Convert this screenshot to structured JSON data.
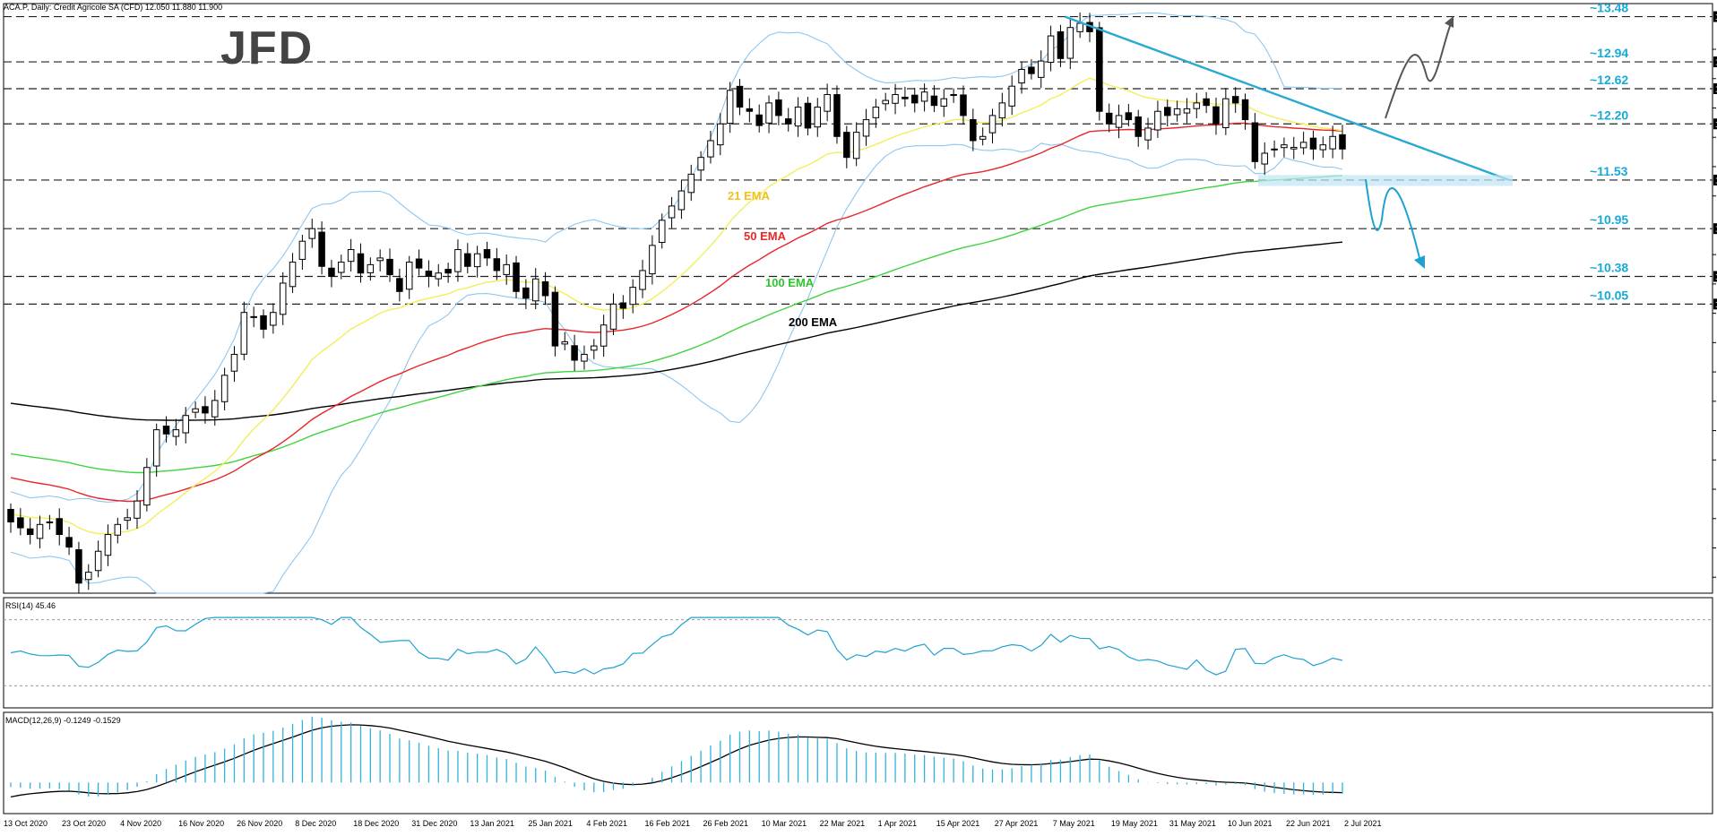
{
  "symbol_header": "ACA.P, Daily:  Credit Agricole SA (CFD)  12.050 11.880 11.900",
  "logo_text": "JFD",
  "colors": {
    "bull": "#ffffff",
    "bear": "#000000",
    "ema21": "#f3ee5a",
    "ema50": "#e8262a",
    "ema100": "#3fd43f",
    "ema200": "#000000",
    "bollinger": "#8fc6ee",
    "trendline": "#2aa9d2",
    "level_label": "#18a9d6",
    "rsi": "#1fa2d1",
    "macd_hist": "#2fb3e0",
    "macd_signal": "#000000",
    "scenario_up": "#555555",
    "scenario_down": "#1fa2d1"
  },
  "chart_data": [
    {
      "type": "candlestick",
      "title": "ACA.P, Daily:  Credit Agricole SA (CFD)",
      "ylim": [
        6.6,
        13.55
      ],
      "y_ticks": [
        "6.790",
        "7.140",
        "7.490",
        "7.840",
        "8.190",
        "8.540",
        "8.890",
        "9.240",
        "9.590",
        "9.940",
        "10.290",
        "10.640",
        "11.340",
        "11.690",
        "12.040",
        "12.390",
        "12.740",
        "13.090"
      ],
      "x_ticks": [
        "13 Oct 2020",
        "23 Oct 2020",
        "4 Nov 2020",
        "16 Nov 2020",
        "26 Nov 2020",
        "8 Dec 2020",
        "18 Dec 2020",
        "31 Dec 2020",
        "13 Jan 2021",
        "25 Jan 2021",
        "4 Feb 2021",
        "16 Feb 2021",
        "26 Feb 2021",
        "10 Mar 2021",
        "22 Mar 2021",
        "1 Apr 2021",
        "15 Apr 2021",
        "27 Apr 2021",
        "7 May 2021",
        "19 May 2021",
        "31 May 2021",
        "10 Jun 2021",
        "22 Jun 2021",
        "2 Jul 2021"
      ],
      "horizontal_levels": [
        {
          "value": 13.48,
          "label": "~13.48",
          "box": "13.480"
        },
        {
          "value": 12.94,
          "label": "~12.94",
          "box": "12.940"
        },
        {
          "value": 12.62,
          "label": "~12.62",
          "box": "12.620"
        },
        {
          "value": 12.2,
          "label": "~12.20",
          "box": "12.200"
        },
        {
          "value": 11.53,
          "label": "~11.53",
          "box": "11.530"
        },
        {
          "value": 10.95,
          "label": "~10.95",
          "box": "10.950"
        },
        {
          "value": 10.38,
          "label": "~10.38",
          "box": "10.380"
        },
        {
          "value": 10.05,
          "label": "~10.05",
          "box": "10.050"
        }
      ],
      "indicator_labels": [
        {
          "text": "21 EMA",
          "key": "ema21"
        },
        {
          "text": "50 EMA",
          "key": "ema50"
        },
        {
          "text": "100 EMA",
          "key": "ema100"
        },
        {
          "text": "200 EMA",
          "key": "ema200"
        }
      ],
      "series_close": [
        7.45,
        7.38,
        7.3,
        7.42,
        7.45,
        7.3,
        7.15,
        6.72,
        6.85,
        7.1,
        7.3,
        7.42,
        7.5,
        7.7,
        8.1,
        8.55,
        8.5,
        8.55,
        8.72,
        8.8,
        8.75,
        8.9,
        9.2,
        9.45,
        9.95,
        9.9,
        9.75,
        9.95,
        10.3,
        10.55,
        10.8,
        10.95,
        10.5,
        10.38,
        10.55,
        10.7,
        10.42,
        10.52,
        10.6,
        10.4,
        10.2,
        10.55,
        10.48,
        10.38,
        10.42,
        10.42,
        10.7,
        10.5,
        10.65,
        10.6,
        10.45,
        10.52,
        10.2,
        10.12,
        10.35,
        10.15,
        9.55,
        9.6,
        9.38,
        9.45,
        9.55,
        9.8,
        10.05,
        10.0,
        10.25,
        10.45,
        10.75,
        11.05,
        11.22,
        11.4,
        11.6,
        11.8,
        12.0,
        12.2,
        12.6,
        12.4,
        12.35,
        12.18,
        12.45,
        12.3,
        12.2,
        12.4,
        12.15,
        12.4,
        12.55,
        12.05,
        11.8,
        12.1,
        12.25,
        12.4,
        12.48,
        12.55,
        12.5,
        12.45,
        12.58,
        12.42,
        12.5,
        12.55,
        12.3,
        12.0,
        12.05,
        12.3,
        12.45,
        12.65,
        12.85,
        12.8,
        12.95,
        13.25,
        12.98,
        13.35,
        13.4,
        13.3,
        12.35,
        12.2,
        12.3,
        12.25,
        12.05,
        12.15,
        12.35,
        12.3,
        12.38,
        12.38,
        12.45,
        12.42,
        12.2,
        12.5,
        12.45,
        12.25,
        11.75,
        11.85,
        11.9,
        11.95,
        11.92,
        11.98,
        11.9,
        11.95,
        12.05,
        11.9
      ]
    },
    {
      "type": "line",
      "title": "RSI(14) 45.46",
      "ylim": [
        0,
        100
      ],
      "y_ticks": [
        "100.00",
        "80.00",
        "20.00",
        "0.00"
      ]
    },
    {
      "type": "bar",
      "title": "MACD(12,26,9) -0.1249 -0.1529",
      "ylim": [
        -0.369,
        0.8322
      ],
      "y_ticks": [
        "0.8322",
        "0.0000",
        "-0.3690"
      ]
    }
  ]
}
